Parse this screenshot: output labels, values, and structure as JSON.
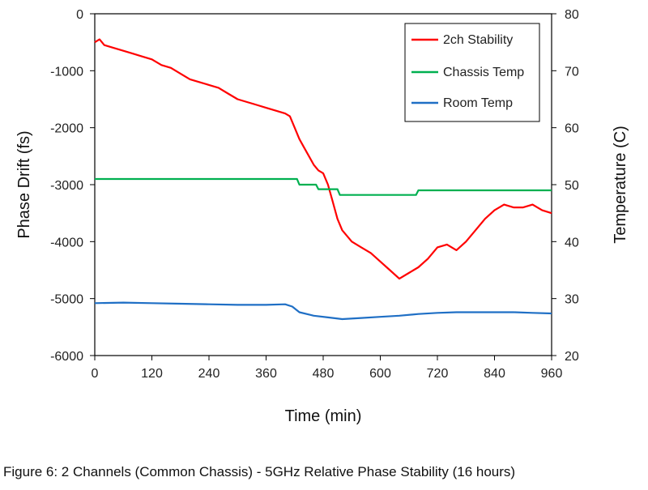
{
  "caption": "Figure 6:  2 Channels (Common Chassis) - 5GHz Relative Phase Stability (16 hours)",
  "chart_data": {
    "type": "line",
    "title": "",
    "xlabel": "Time (min)",
    "ylabel": "Phase Drift (fs)",
    "y2label": "Temperature (C)",
    "xlim": [
      0,
      960
    ],
    "ylim": [
      -6000,
      0
    ],
    "y2lim": [
      20,
      80
    ],
    "xticks": [
      "0",
      "120",
      "240",
      "360",
      "480",
      "600",
      "720",
      "840",
      "960"
    ],
    "yticks": [
      "0",
      "-1000",
      "-2000",
      "-3000",
      "-4000",
      "-5000",
      "-6000"
    ],
    "y2ticks": [
      "80",
      "70",
      "60",
      "50",
      "40",
      "30",
      "20"
    ],
    "grid": false,
    "legend_position": "top-right",
    "series": [
      {
        "name": "2ch Stability",
        "axis": "left",
        "color": "#ff0000",
        "x": [
          0,
          10,
          20,
          40,
          60,
          80,
          100,
          120,
          140,
          160,
          180,
          200,
          220,
          240,
          260,
          280,
          300,
          320,
          340,
          360,
          380,
          400,
          410,
          420,
          430,
          440,
          450,
          460,
          470,
          480,
          490,
          500,
          510,
          520,
          530,
          540,
          560,
          580,
          600,
          620,
          640,
          660,
          680,
          700,
          720,
          740,
          760,
          780,
          800,
          820,
          840,
          860,
          880,
          900,
          920,
          940,
          960
        ],
        "values": [
          -500,
          -450,
          -550,
          -600,
          -650,
          -700,
          -750,
          -800,
          -900,
          -950,
          -1050,
          -1150,
          -1200,
          -1250,
          -1300,
          -1400,
          -1500,
          -1550,
          -1600,
          -1650,
          -1700,
          -1750,
          -1800,
          -2000,
          -2200,
          -2350,
          -2500,
          -2650,
          -2750,
          -2800,
          -3000,
          -3300,
          -3600,
          -3800,
          -3900,
          -4000,
          -4100,
          -4200,
          -4350,
          -4500,
          -4650,
          -4550,
          -4450,
          -4300,
          -4100,
          -4050,
          -4150,
          -4000,
          -3800,
          -3600,
          -3450,
          -3350,
          -3400,
          -3400,
          -3350,
          -3450,
          -3500
        ]
      },
      {
        "name": "Chassis Temp",
        "axis": "right",
        "color": "#00b050",
        "x": [
          0,
          425,
          430,
          465,
          470,
          510,
          515,
          675,
          680,
          960
        ],
        "values": [
          51,
          51,
          50,
          50,
          49.2,
          49.2,
          48.2,
          48.2,
          49,
          49
        ]
      },
      {
        "name": "Room Temp",
        "axis": "right",
        "color": "#1f6fc5",
        "x": [
          0,
          60,
          120,
          180,
          240,
          300,
          360,
          400,
          415,
          430,
          460,
          490,
          520,
          560,
          600,
          640,
          680,
          720,
          760,
          800,
          840,
          880,
          920,
          960
        ],
        "values": [
          29.2,
          29.3,
          29.2,
          29.1,
          29,
          28.9,
          28.9,
          29,
          28.6,
          27.6,
          27,
          26.7,
          26.4,
          26.6,
          26.8,
          27,
          27.3,
          27.5,
          27.6,
          27.6,
          27.6,
          27.6,
          27.5,
          27.4
        ]
      }
    ]
  }
}
